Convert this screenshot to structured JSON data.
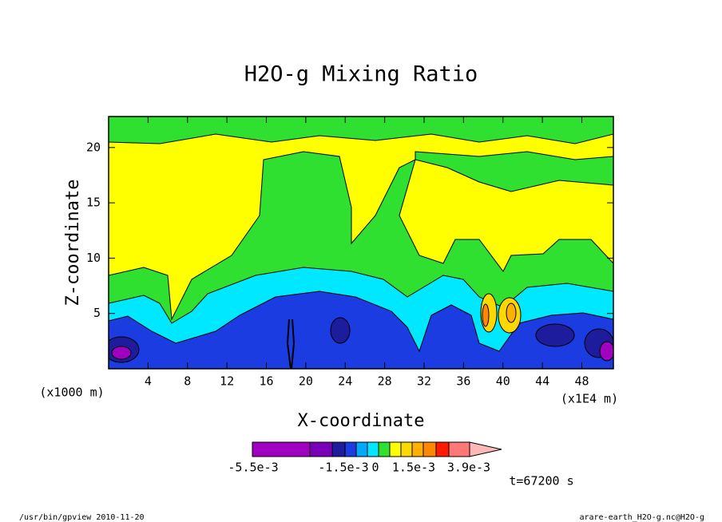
{
  "chart_data": {
    "type": "contour",
    "title": "H2O-g Mixing Ratio",
    "x_label": "X-coordinate",
    "y_label": "Z-coordinate",
    "x_unit": "(x1E4 m)",
    "y_unit": "(x1000 m)",
    "xlim": [
      0,
      51.2
    ],
    "ylim": [
      0,
      22.8
    ],
    "xticks": [
      4,
      8,
      12,
      16,
      20,
      24,
      28,
      32,
      36,
      40,
      44,
      48
    ],
    "yticks": [
      5,
      10,
      15,
      20
    ],
    "colorbar": {
      "colors": [
        "#a000c0",
        "#7a00b8",
        "#1c1c9c",
        "#1a3ce0",
        "#00a8ff",
        "#00e8ff",
        "#30e030",
        "#ffff00",
        "#ffd800",
        "#ffb000",
        "#ff8800",
        "#ff1a00",
        "#ff7878",
        "#ffb8b8"
      ],
      "ticks": [
        {
          "value": -0.0055,
          "label": "-5.5e-3"
        },
        {
          "value": -0.0015,
          "label": "-1.5e-3"
        },
        0,
        {
          "value": 0.0015,
          "label": "1.5e-3"
        },
        {
          "value": 0.0039,
          "label": "3.9e-3"
        }
      ]
    },
    "time_label": "t=67200 s",
    "footer_left": "/usr/bin/gpview  2010-11-20",
    "footer_right": "arare-earth_H2O-g.nc@H2O-g"
  }
}
